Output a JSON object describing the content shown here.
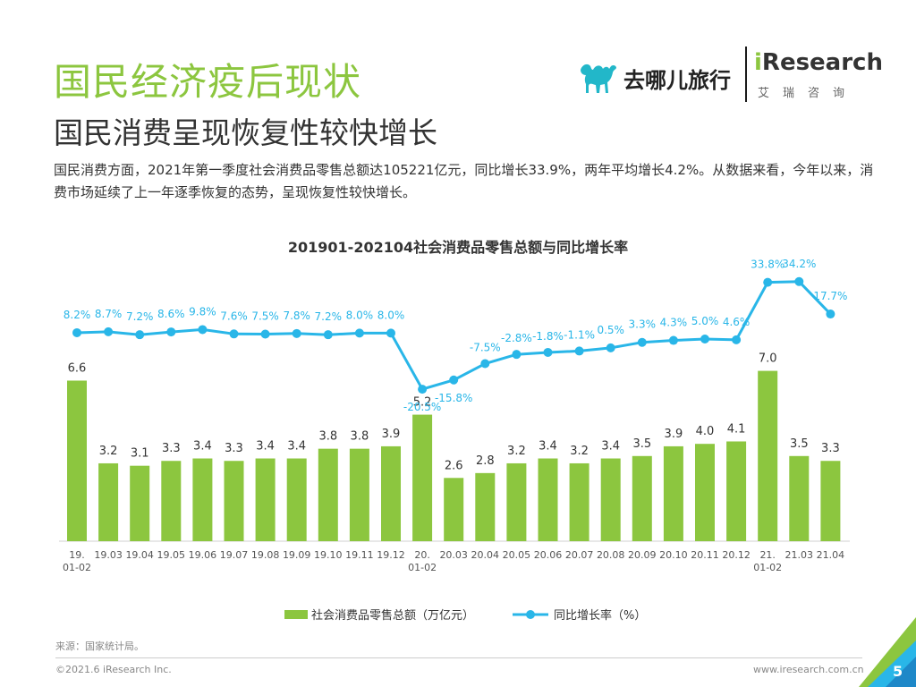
{
  "header": {
    "title": "国民经济疫后现状",
    "subtitle": "国民消费呈现恢复性较快增长",
    "description": "国民消费方面，2021年第一季度社会消费品零售总额达105221亿元，同比增长33.9%，两年平均增长4.2%。从数据来看，今年以来，消费市场延续了上一年逐季恢复的态势，呈现恢复性较快增长。"
  },
  "logos": {
    "qunar_text": "去哪儿旅行",
    "iresearch_i": "i",
    "iresearch_rest": "Research",
    "iresearch_cn": "艾瑞咨询"
  },
  "colors": {
    "title": "#8cc63f",
    "bar": "#8cc63f",
    "line": "#29b6e8",
    "label_line": "#29b6e8"
  },
  "chart_data": {
    "type": "bar+line",
    "title": "201901-202104社会消费品零售总额与同比增长率",
    "categories": [
      [
        "19.",
        "01-02"
      ],
      [
        "19.03"
      ],
      [
        "19.04"
      ],
      [
        "19.05"
      ],
      [
        "19.06"
      ],
      [
        "19.07"
      ],
      [
        "19.08"
      ],
      [
        "19.09"
      ],
      [
        "19.10"
      ],
      [
        "19.11"
      ],
      [
        "19.12"
      ],
      [
        "20.",
        "01-02"
      ],
      [
        "20.03"
      ],
      [
        "20.04"
      ],
      [
        "20.05"
      ],
      [
        "20.06"
      ],
      [
        "20.07"
      ],
      [
        "20.08"
      ],
      [
        "20.09"
      ],
      [
        "20.10"
      ],
      [
        "20.11"
      ],
      [
        "20.12"
      ],
      [
        "21.",
        "01-02"
      ],
      [
        "21.03"
      ],
      [
        "21.04"
      ]
    ],
    "series": [
      {
        "name": "社会消费品零售总额（万亿元）",
        "kind": "bar",
        "values": [
          6.6,
          3.2,
          3.1,
          3.3,
          3.4,
          3.3,
          3.4,
          3.4,
          3.8,
          3.8,
          3.9,
          5.2,
          2.6,
          2.8,
          3.2,
          3.4,
          3.2,
          3.4,
          3.5,
          3.9,
          4.0,
          4.1,
          7.0,
          3.5,
          3.3
        ],
        "labels": [
          "6.6",
          "3.2",
          "3.1",
          "3.3",
          "3.4",
          "3.3",
          "3.4",
          "3.4",
          "3.8",
          "3.8",
          "3.9",
          "5.2",
          "2.6",
          "2.8",
          "3.2",
          "3.4",
          "3.2",
          "3.4",
          "3.5",
          "3.9",
          "4.0",
          "4.1",
          "7.0",
          "3.5",
          "3.3"
        ]
      },
      {
        "name": "同比增长率（%）",
        "kind": "line",
        "values": [
          8.2,
          8.7,
          7.2,
          8.6,
          9.8,
          7.6,
          7.5,
          7.8,
          7.2,
          8.0,
          8.0,
          -20.5,
          -15.8,
          -7.5,
          -2.8,
          -1.8,
          -1.1,
          0.5,
          3.3,
          4.3,
          5.0,
          4.6,
          33.8,
          34.2,
          17.7
        ],
        "labels": [
          "8.2%",
          "8.7%",
          "7.2%",
          "8.6%",
          "9.8%",
          "7.6%",
          "7.5%",
          "7.8%",
          "7.2%",
          "8.0%",
          "8.0%",
          "-20.5%",
          "-15.8%",
          "-7.5%",
          "-2.8%",
          "-1.8%",
          "-1.1%",
          "0.5%",
          "3.3%",
          "4.3%",
          "5.0%",
          "4.6%",
          "33.8%",
          "34.2%",
          "17.7%"
        ]
      }
    ],
    "legend": [
      "社会消费品零售总额（万亿元）",
      "同比增长率（%）"
    ],
    "legend_position": "bottom"
  },
  "footer": {
    "source": "来源：国家统计局。",
    "copyright": "©2021.6 iResearch Inc.",
    "website": "www.iresearch.com.cn",
    "page": "5"
  }
}
